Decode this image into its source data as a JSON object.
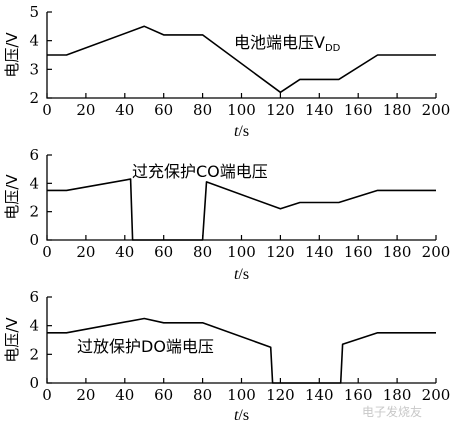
{
  "chart_data": [
    {
      "type": "line",
      "annotation": "电池端电压V",
      "annotation_sub": "DD",
      "xlabel_italic": "t",
      "xlabel_unit": "/s",
      "ylabel": "电压/V",
      "xlim": [
        0,
        200
      ],
      "ylim": [
        2,
        5
      ],
      "xticks": [
        "0",
        "20",
        "40",
        "60",
        "80",
        "100",
        "120",
        "140",
        "160",
        "180",
        "200"
      ],
      "yticks": [
        "2",
        "3",
        "4",
        "5"
      ],
      "series": [
        {
          "x": [
            0,
            10,
            50,
            60,
            80,
            120,
            130,
            150,
            170,
            200
          ],
          "y": [
            3.5,
            3.5,
            4.5,
            4.2,
            4.2,
            2.2,
            2.65,
            2.65,
            3.5,
            3.5
          ]
        }
      ]
    },
    {
      "type": "line",
      "annotation": "过充保护CO端电压",
      "xlabel_italic": "t",
      "xlabel_unit": "/s",
      "ylabel": "电压/V",
      "xlim": [
        0,
        200
      ],
      "ylim": [
        0,
        6
      ],
      "xticks": [
        "0",
        "20",
        "40",
        "60",
        "80",
        "100",
        "120",
        "140",
        "160",
        "180",
        "200"
      ],
      "yticks": [
        "0",
        "2",
        "4",
        "6"
      ],
      "series": [
        {
          "x": [
            0,
            10,
            43,
            44,
            80,
            82,
            120,
            130,
            150,
            170,
            200
          ],
          "y": [
            3.5,
            3.5,
            4.3,
            0,
            0,
            4.1,
            2.2,
            2.65,
            2.65,
            3.5,
            3.5
          ]
        }
      ]
    },
    {
      "type": "line",
      "annotation": "过放保护DO端电压",
      "xlabel_italic": "t",
      "xlabel_unit": "/s",
      "ylabel": "电压/V",
      "xlim": [
        0,
        200
      ],
      "ylim": [
        0,
        6
      ],
      "xticks": [
        "0",
        "20",
        "40",
        "60",
        "80",
        "100",
        "120",
        "140",
        "160",
        "180",
        "200"
      ],
      "yticks": [
        "0",
        "2",
        "4",
        "6"
      ],
      "series": [
        {
          "x": [
            0,
            10,
            50,
            60,
            80,
            115,
            116,
            151,
            152,
            170,
            200
          ],
          "y": [
            3.5,
            3.5,
            4.5,
            4.2,
            4.2,
            2.5,
            0,
            0,
            2.7,
            3.5,
            3.5
          ]
        }
      ]
    }
  ],
  "watermark": "电子发烧友"
}
